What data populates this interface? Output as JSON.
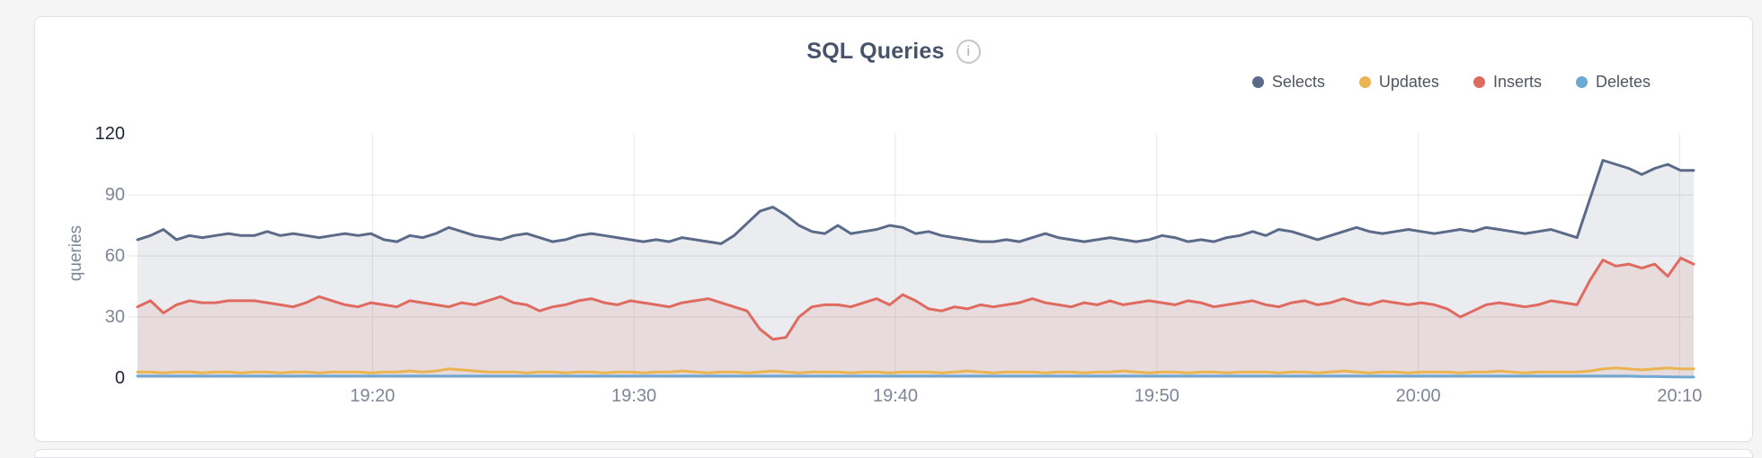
{
  "panel": {
    "title": "SQL Queries",
    "info_glyph": "i"
  },
  "chart_data": {
    "type": "area",
    "title": "SQL Queries",
    "xlabel": "",
    "ylabel": "queries",
    "ylim": [
      0,
      120
    ],
    "grid": true,
    "legend_position": "top-right",
    "y_ticks": [
      {
        "label": "0",
        "value": 0,
        "dark": true
      },
      {
        "label": "30",
        "value": 30,
        "dark": false
      },
      {
        "label": "60",
        "value": 60,
        "dark": false
      },
      {
        "label": "90",
        "value": 90,
        "dark": false
      },
      {
        "label": "120",
        "value": 120,
        "dark": true
      }
    ],
    "x_ticks": [
      {
        "label": "19:20",
        "pos": 0.151
      },
      {
        "label": "19:30",
        "pos": 0.319
      },
      {
        "label": "19:40",
        "pos": 0.487
      },
      {
        "label": "19:50",
        "pos": 0.655
      },
      {
        "label": "20:00",
        "pos": 0.823
      },
      {
        "label": "20:10",
        "pos": 0.991
      }
    ],
    "series": [
      {
        "name": "Selects",
        "color": "#5b6a88",
        "fill": true,
        "fill_opacity": 0.13,
        "values": [
          68,
          70,
          73,
          68,
          70,
          69,
          70,
          71,
          70,
          70,
          72,
          70,
          71,
          70,
          69,
          70,
          71,
          70,
          71,
          68,
          67,
          70,
          69,
          71,
          74,
          72,
          70,
          69,
          68,
          70,
          71,
          69,
          67,
          68,
          70,
          71,
          70,
          69,
          68,
          67,
          68,
          67,
          69,
          68,
          67,
          66,
          70,
          76,
          82,
          84,
          80,
          75,
          72,
          71,
          75,
          71,
          72,
          73,
          75,
          74,
          71,
          72,
          70,
          69,
          68,
          67,
          67,
          68,
          67,
          69,
          71,
          69,
          68,
          67,
          68,
          69,
          68,
          67,
          68,
          70,
          69,
          67,
          68,
          67,
          69,
          70,
          72,
          70,
          73,
          72,
          70,
          68,
          70,
          72,
          74,
          72,
          71,
          72,
          73,
          72,
          71,
          72,
          73,
          72,
          74,
          73,
          72,
          71,
          72,
          73,
          71,
          69,
          88,
          107,
          105,
          103,
          100,
          103,
          105,
          102,
          102
        ]
      },
      {
        "name": "Updates",
        "color": "#eab550",
        "fill": false,
        "fill_opacity": 0,
        "values": [
          3,
          3,
          2.5,
          3,
          3,
          2.5,
          3,
          3,
          2.5,
          3,
          3,
          2.5,
          3,
          3,
          2.5,
          3,
          3,
          3,
          2.5,
          3,
          3,
          3.5,
          3,
          3.5,
          4.5,
          4,
          3.5,
          3,
          3,
          3,
          2.5,
          3,
          3,
          2.5,
          3,
          3,
          2.5,
          3,
          3,
          2.5,
          3,
          3,
          3.5,
          3,
          2.5,
          3,
          3,
          2.5,
          3,
          3.5,
          3,
          2.5,
          3,
          3,
          3,
          2.5,
          3,
          3,
          2.5,
          3,
          3,
          3,
          2.5,
          3,
          3.5,
          3,
          2.5,
          3,
          3,
          3,
          2.5,
          3,
          3,
          2.5,
          3,
          3,
          3.5,
          3,
          2.5,
          3,
          3,
          2.5,
          3,
          3,
          2.5,
          3,
          3,
          3,
          2.5,
          3,
          3,
          2.5,
          3,
          3.5,
          3,
          2.5,
          3,
          3,
          2.5,
          3,
          3,
          3,
          2.5,
          3,
          3,
          3.5,
          3,
          2.5,
          3,
          3,
          3,
          3,
          3.5,
          4.5,
          5,
          4.5,
          4,
          4.5,
          5,
          4.5,
          4.5
        ]
      },
      {
        "name": "Inserts",
        "color": "#df6a60",
        "fill": true,
        "fill_opacity": 0.13,
        "values": [
          35,
          38,
          32,
          36,
          38,
          37,
          37,
          38,
          38,
          38,
          37,
          36,
          35,
          37,
          40,
          38,
          36,
          35,
          37,
          36,
          35,
          38,
          37,
          36,
          35,
          37,
          36,
          38,
          40,
          37,
          36,
          33,
          35,
          36,
          38,
          39,
          37,
          36,
          38,
          37,
          36,
          35,
          37,
          38,
          39,
          37,
          35,
          33,
          24,
          19,
          20,
          30,
          35,
          36,
          36,
          35,
          37,
          39,
          36,
          41,
          38,
          34,
          33,
          35,
          34,
          36,
          35,
          36,
          37,
          39,
          37,
          36,
          35,
          37,
          36,
          38,
          36,
          37,
          38,
          37,
          36,
          38,
          37,
          35,
          36,
          37,
          38,
          36,
          35,
          37,
          38,
          36,
          37,
          39,
          37,
          36,
          38,
          37,
          36,
          37,
          36,
          34,
          30,
          33,
          36,
          37,
          36,
          35,
          36,
          38,
          37,
          36,
          48,
          58,
          55,
          56,
          54,
          56,
          50,
          59,
          56
        ]
      },
      {
        "name": "Deletes",
        "color": "#6fa8d2",
        "fill": false,
        "fill_opacity": 0,
        "values": [
          1,
          1,
          1,
          1,
          1,
          1,
          1,
          1,
          1,
          1,
          1,
          1,
          1,
          1,
          1,
          1,
          1,
          1,
          1,
          1,
          1,
          1,
          1,
          1,
          1,
          1,
          1,
          1,
          1,
          1,
          1,
          1,
          1,
          1,
          1,
          1,
          1,
          1,
          1,
          1,
          1,
          1,
          1,
          1,
          1,
          1,
          1,
          1,
          1,
          1,
          1,
          1,
          1,
          1,
          1,
          1,
          1,
          1,
          1,
          1,
          1,
          1,
          1,
          1,
          1,
          1,
          1,
          1,
          1,
          1,
          1,
          1,
          1,
          1,
          1,
          1,
          1,
          1,
          1,
          1,
          1,
          1,
          1,
          1,
          1,
          1,
          1,
          1,
          1,
          1,
          1,
          1,
          1,
          1,
          1,
          1,
          1,
          1,
          1,
          1,
          1,
          1,
          1,
          1,
          1,
          1,
          1,
          1,
          1,
          1,
          1,
          1,
          1,
          1,
          1,
          1,
          0.8,
          0.8,
          0.6,
          0.5,
          0.5
        ]
      }
    ]
  }
}
